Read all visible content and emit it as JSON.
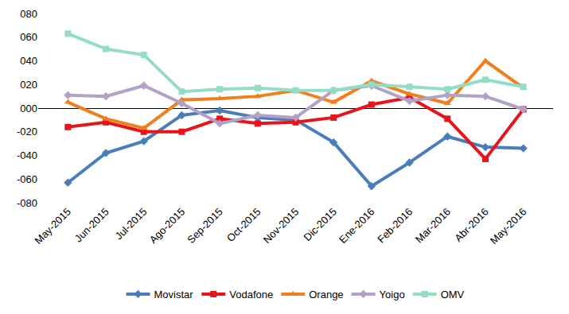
{
  "chart_data": {
    "type": "line",
    "categories": [
      "May-2015",
      "Jun-2015",
      "Jul-2015",
      "Ago-2015",
      "Sep-2015",
      "Oct-2015",
      "Nov-2015",
      "Dic-2015",
      "Ene-2016",
      "Feb-2016",
      "Mar-2016",
      "Abr-2016",
      "May-2016"
    ],
    "series": [
      {
        "name": "Movistar",
        "color": "#4a7ebb",
        "marker": "diamond",
        "values": [
          -63,
          -38,
          -28,
          -6,
          -2,
          -8,
          -10,
          -29,
          -66,
          -46,
          -24,
          -33,
          -34
        ]
      },
      {
        "name": "Vodafone",
        "color": "#e8141c",
        "marker": "square",
        "values": [
          -16,
          -12,
          -20,
          -20,
          -9,
          -13,
          -12,
          -8,
          3,
          9,
          -9,
          -43,
          -1
        ]
      },
      {
        "name": "Orange",
        "color": "#f07f1e",
        "marker": "triangle-up",
        "values": [
          5,
          -9,
          -17,
          7,
          8,
          10,
          15,
          5,
          23,
          12,
          4,
          40,
          17
        ]
      },
      {
        "name": "Yoigo",
        "color": "#b3a2c7",
        "marker": "diamond",
        "values": [
          11,
          10,
          19,
          4,
          -13,
          -6,
          -8,
          15,
          19,
          6,
          11,
          10,
          -1
        ]
      },
      {
        "name": "OMV",
        "color": "#93dcc6",
        "marker": "square",
        "values": [
          63,
          50,
          45,
          14,
          16,
          17,
          15,
          15,
          20,
          18,
          16,
          24,
          18
        ]
      }
    ],
    "ylim": [
      -80,
      80
    ],
    "yticks": [
      {
        "value": -80,
        "label": "-080"
      },
      {
        "value": -60,
        "label": "-060"
      },
      {
        "value": -40,
        "label": "-040"
      },
      {
        "value": -20,
        "label": "-020"
      },
      {
        "value": 0,
        "label": "000"
      },
      {
        "value": 20,
        "label": "020"
      },
      {
        "value": 40,
        "label": "040"
      },
      {
        "value": 60,
        "label": "060"
      },
      {
        "value": 80,
        "label": "080"
      }
    ],
    "grid": false,
    "legend": "bottom"
  }
}
